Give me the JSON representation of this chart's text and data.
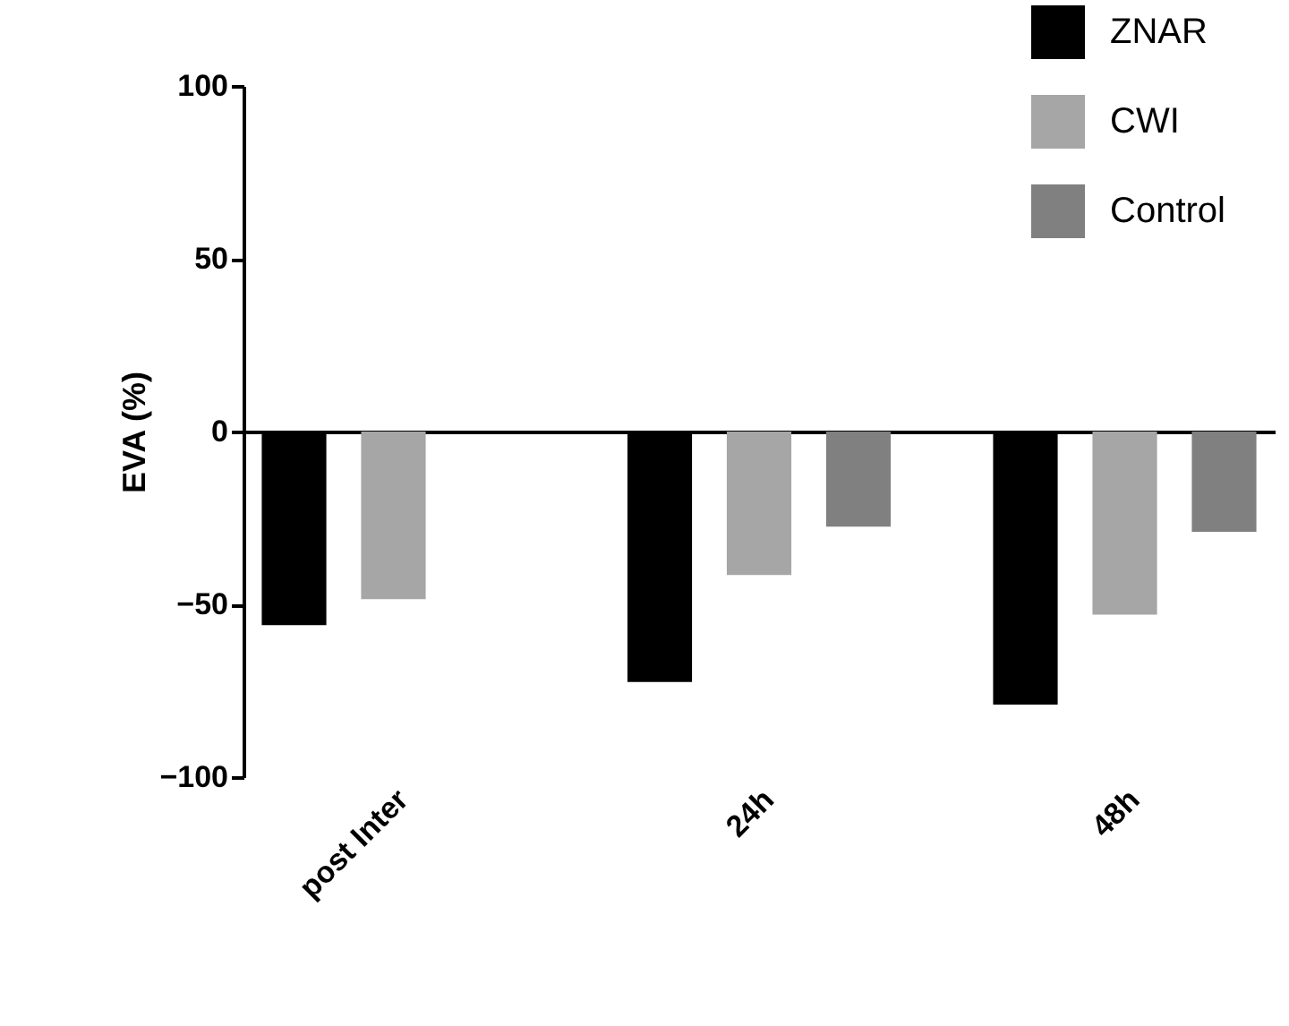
{
  "chart_data": {
    "type": "bar",
    "ylabel": "EVA (%)",
    "categories": [
      "post Inter",
      "24h",
      "48h"
    ],
    "series": [
      {
        "name": "ZNAR",
        "color": "#000000",
        "values": [
          -56,
          -72.5,
          -79
        ]
      },
      {
        "name": "CWI",
        "color": "#a6a6a6",
        "values": [
          -48.5,
          -41.5,
          -53
        ]
      },
      {
        "name": "Control",
        "color": "#808080",
        "values": [
          null,
          -27.5,
          -29
        ]
      }
    ],
    "ylim": [
      -100,
      100
    ],
    "yticks": [
      -100,
      -50,
      0,
      50,
      100
    ],
    "legend": "top right"
  }
}
